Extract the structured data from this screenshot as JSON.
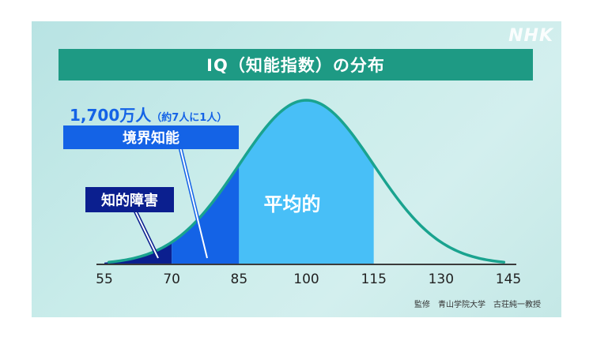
{
  "branding": {
    "logo_text": "NHK"
  },
  "chart_data": {
    "type": "area",
    "title": "IQ（知能指数）の分布",
    "distribution": "normal",
    "mean": 100,
    "sd": 15,
    "xlim": [
      55,
      145
    ],
    "x_ticks": [
      "55",
      "70",
      "85",
      "100",
      "115",
      "130",
      "145"
    ],
    "regions": [
      {
        "label": "知的障害",
        "from": 55,
        "to": 70,
        "color": "#0b1f8f"
      },
      {
        "label": "境界知能",
        "from": 70,
        "to": 85,
        "color": "#1463e6",
        "annotation": "1,700万人（約7人に1人）"
      },
      {
        "label": "平均的",
        "from": 85,
        "to": 115,
        "color": "#48bff7"
      }
    ],
    "curve_color": "#1aa38f",
    "source": "監修　青山学院大学　古荘純一教授"
  }
}
